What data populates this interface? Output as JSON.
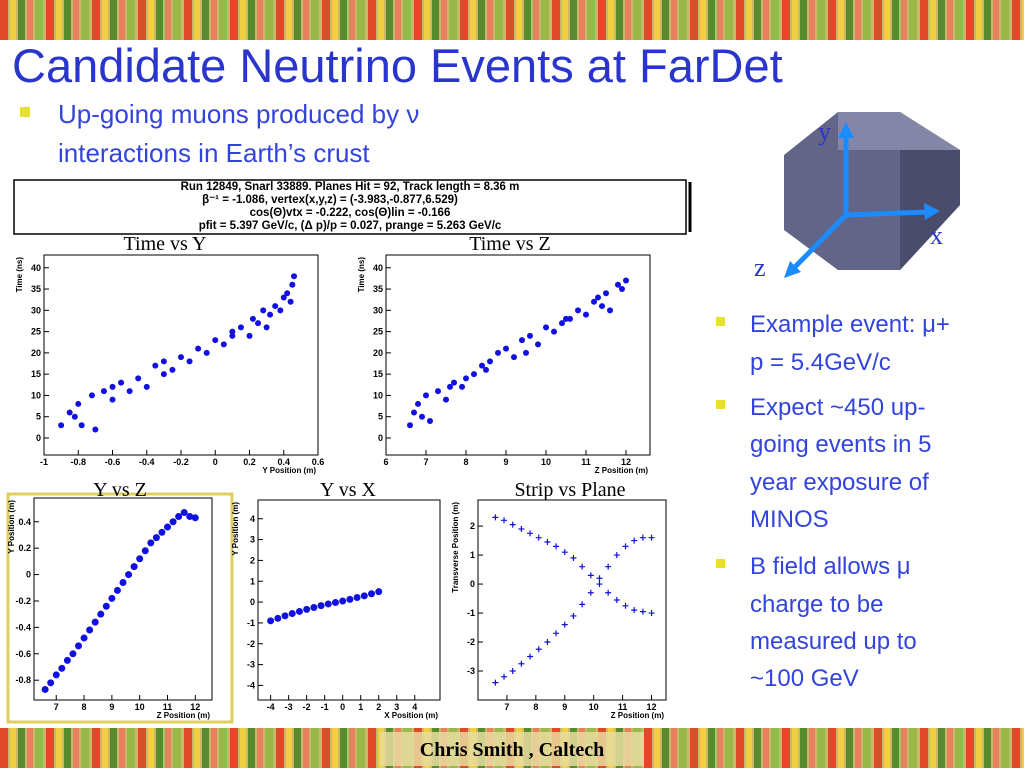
{
  "title": "Candidate Neutrino Events at FarDet",
  "intro_bullet": [
    "Up-going muons produced by ν",
    "interactions in Earth’s crust"
  ],
  "info_box": [
    "Run 12849, Snarl 33889.  Planes Hit = 92, Track length = 8.36 m",
    "β⁻¹ = -1.086,  vertex(x,y,z) = (-3.983,-0.877,6.529)",
    "cos(Θ)vtx = -0.222, cos(Θ)lin = -0.166",
    "pfit = 5.397 GeV/c,  (Δ p)/p = 0.027, prange = 5.263 GeV/c"
  ],
  "axes_labels": [
    "y",
    "x",
    "z"
  ],
  "right_bullets": [
    [
      "Example event: μ+",
      "p = 5.4GeV/c"
    ],
    [
      "Expect ~450 up-",
      "going events in 5",
      "year exposure of",
      "MINOS"
    ],
    [
      "B field allows μ",
      "charge to be",
      "measured up to",
      "~100 GeV"
    ]
  ],
  "footer": "Chris Smith , Caltech",
  "plots": [
    {
      "type": "scatter",
      "title": "Time vs Y",
      "xlabel": "Y Position (m)",
      "ylabel": "Time (ns)",
      "xlim": [
        -1,
        0.6
      ],
      "ylim": [
        -4,
        43
      ],
      "xticks": [
        -1,
        -0.8,
        -0.6,
        -0.4,
        -0.2,
        0,
        0.2,
        0.4,
        0.6
      ],
      "yticks": [
        0,
        5,
        10,
        15,
        20,
        25,
        30,
        35,
        40
      ],
      "series": [
        {
          "color": "#1010e0",
          "marker": "dot",
          "x": [
            -0.9,
            -0.85,
            -0.8,
            -0.78,
            -0.72,
            -0.7,
            -0.65,
            -0.6,
            -0.55,
            -0.5,
            -0.45,
            -0.4,
            -0.35,
            -0.3,
            -0.25,
            -0.2,
            -0.15,
            -0.1,
            -0.05,
            0,
            0.05,
            0.1,
            0.15,
            0.2,
            0.22,
            0.25,
            0.28,
            0.3,
            0.32,
            0.35,
            0.38,
            0.4,
            0.42,
            0.44,
            0.45,
            0.46,
            -0.82,
            -0.6,
            -0.3,
            0.1
          ],
          "y": [
            3,
            6,
            8,
            3,
            10,
            2,
            11,
            9,
            13,
            11,
            14,
            12,
            17,
            15,
            16,
            19,
            18,
            21,
            20,
            23,
            22,
            25,
            26,
            24,
            28,
            27,
            30,
            26,
            29,
            31,
            30,
            33,
            34,
            32,
            36,
            38,
            5,
            12,
            18,
            24
          ]
        }
      ]
    },
    {
      "type": "scatter",
      "title": "Time vs Z",
      "xlabel": "Z Position (m)",
      "ylabel": "Time (ns)",
      "xlim": [
        6,
        12.6
      ],
      "ylim": [
        -4,
        43
      ],
      "xticks": [
        6,
        7,
        8,
        9,
        10,
        11,
        12
      ],
      "yticks": [
        0,
        5,
        10,
        15,
        20,
        25,
        30,
        35,
        40
      ],
      "series": [
        {
          "color": "#1010e0",
          "marker": "dot",
          "x": [
            6.6,
            6.7,
            6.8,
            7,
            7.1,
            7.3,
            7.5,
            7.7,
            7.9,
            8,
            8.2,
            8.4,
            8.6,
            8.8,
            9,
            9.2,
            9.4,
            9.6,
            9.8,
            10,
            10.2,
            10.4,
            10.6,
            10.8,
            11,
            11.2,
            11.4,
            11.5,
            11.6,
            11.8,
            11.9,
            12,
            6.9,
            7.6,
            8.5,
            9.5,
            10.5,
            11.3
          ],
          "y": [
            3,
            6,
            8,
            10,
            4,
            11,
            9,
            13,
            12,
            14,
            15,
            17,
            18,
            20,
            21,
            19,
            23,
            24,
            22,
            26,
            25,
            27,
            28,
            30,
            29,
            32,
            31,
            34,
            30,
            36,
            35,
            37,
            5,
            12,
            16,
            20,
            28,
            33
          ]
        }
      ]
    },
    {
      "type": "scatter",
      "title": "Y vs Z",
      "xlabel": "Z Position (m)",
      "ylabel": "Y Position (m)",
      "xlim": [
        6.2,
        12.6
      ],
      "ylim": [
        -0.95,
        0.58
      ],
      "xticks": [
        7,
        8,
        9,
        10,
        11,
        12
      ],
      "yticks": [
        -0.8,
        -0.6,
        -0.4,
        -0.2,
        0,
        0.2,
        0.4
      ],
      "series": [
        {
          "color": "#1010e0",
          "marker": "dot",
          "x": [
            6.6,
            6.8,
            7,
            7.2,
            7.4,
            7.6,
            7.8,
            8,
            8.2,
            8.4,
            8.6,
            8.8,
            9,
            9.2,
            9.4,
            9.6,
            9.8,
            10,
            10.2,
            10.4,
            10.6,
            10.8,
            11,
            11.2,
            11.4,
            11.6,
            11.8,
            12
          ],
          "y": [
            -0.87,
            -0.82,
            -0.76,
            -0.71,
            -0.65,
            -0.6,
            -0.54,
            -0.48,
            -0.42,
            -0.36,
            -0.3,
            -0.24,
            -0.18,
            -0.12,
            -0.06,
            0,
            0.06,
            0.12,
            0.18,
            0.24,
            0.28,
            0.32,
            0.36,
            0.4,
            0.44,
            0.47,
            0.44,
            0.43
          ]
        }
      ]
    },
    {
      "type": "scatter",
      "title": "Y vs X",
      "xlabel": "X Position (m)",
      "ylabel": "Y Position (m)",
      "xlim": [
        -4.7,
        5.4
      ],
      "ylim": [
        -4.7,
        4.9
      ],
      "xticks": [
        -4,
        -3,
        -2,
        -1,
        0,
        1,
        2,
        3,
        4
      ],
      "yticks": [
        -4,
        -3,
        -2,
        -1,
        0,
        1,
        2,
        3,
        4
      ],
      "series": [
        {
          "color": "#1010e0",
          "marker": "dot",
          "x": [
            -4,
            -3.6,
            -3.2,
            -2.8,
            -2.4,
            -2,
            -1.6,
            -1.2,
            -0.8,
            -0.4,
            0,
            0.4,
            0.8,
            1.2,
            1.6,
            2
          ],
          "y": [
            -0.9,
            -0.78,
            -0.66,
            -0.55,
            -0.45,
            -0.35,
            -0.26,
            -0.17,
            -0.09,
            -0.02,
            0.05,
            0.13,
            0.22,
            0.3,
            0.4,
            0.5
          ]
        }
      ]
    },
    {
      "type": "scatter",
      "title": "Strip vs Plane",
      "xlabel": "Z Position (m)",
      "ylabel": "Transverse Position (m)",
      "xlim": [
        6,
        12.5
      ],
      "ylim": [
        -4,
        2.9
      ],
      "xticks": [
        7,
        8,
        9,
        10,
        11,
        12
      ],
      "yticks": [
        -3,
        -2,
        -1,
        0,
        1,
        2
      ],
      "series": [
        {
          "color": "#1010e0",
          "marker": "plus",
          "x": [
            6.6,
            6.9,
            7.2,
            7.5,
            7.8,
            8.1,
            8.4,
            8.7,
            9,
            9.3,
            9.6,
            9.9,
            10.2,
            10.5,
            10.8,
            11.1,
            11.4,
            11.7,
            12
          ],
          "y": [
            2.3,
            2.2,
            2.05,
            1.9,
            1.75,
            1.6,
            1.45,
            1.3,
            1.1,
            0.9,
            0.6,
            0.3,
            0,
            -0.3,
            -0.55,
            -0.75,
            -0.9,
            -0.95,
            -1
          ]
        },
        {
          "color": "#1010e0",
          "marker": "plus",
          "x": [
            6.6,
            6.9,
            7.2,
            7.5,
            7.8,
            8.1,
            8.4,
            8.7,
            9,
            9.3,
            9.6,
            9.9,
            10.2,
            10.5,
            10.8,
            11.1,
            11.4,
            11.7,
            12
          ],
          "y": [
            -3.4,
            -3.2,
            -3,
            -2.75,
            -2.5,
            -2.25,
            -2,
            -1.7,
            -1.4,
            -1.1,
            -0.7,
            -0.3,
            0.2,
            0.6,
            1,
            1.3,
            1.5,
            1.6,
            1.6
          ]
        }
      ]
    }
  ]
}
